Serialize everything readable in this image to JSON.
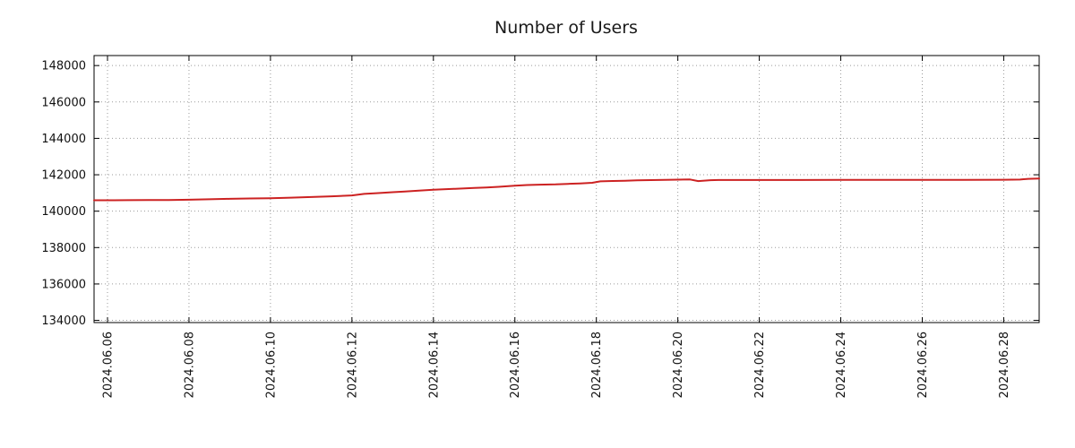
{
  "title": "Number of Users",
  "chart_data": {
    "type": "line",
    "title": "Number of Users",
    "xlabel": "",
    "ylabel": "",
    "grid": true,
    "legend": "none",
    "line_color": "#cc2222",
    "x_unit": "day of month (June 2024)",
    "x": [
      5.67,
      6,
      6.5,
      7,
      7.5,
      8,
      8.5,
      9,
      9.5,
      10,
      10.5,
      11,
      11.5,
      12,
      12.3,
      12.6,
      13,
      13.3,
      13.6,
      14,
      14.5,
      15,
      15.3,
      15.6,
      16,
      16.3,
      16.6,
      17,
      17.3,
      17.6,
      17.9,
      18.1,
      18.4,
      18.7,
      19,
      19.5,
      20,
      20.3,
      20.5,
      20.8,
      21,
      21.5,
      22,
      23,
      24,
      25,
      26,
      27,
      28,
      28.4,
      28.6,
      28.87
    ],
    "values": [
      140600,
      140600,
      140605,
      140610,
      140615,
      140630,
      140655,
      140680,
      140700,
      140715,
      140740,
      140775,
      140815,
      140865,
      140950,
      140990,
      141045,
      141080,
      141120,
      141175,
      141225,
      141275,
      141300,
      141340,
      141395,
      141435,
      141455,
      141470,
      141500,
      141525,
      141560,
      141640,
      141660,
      141675,
      141695,
      141710,
      141730,
      141740,
      141655,
      141700,
      141710,
      141710,
      141710,
      141710,
      141715,
      141715,
      141720,
      141720,
      141725,
      141735,
      141775,
      141795
    ],
    "xlim": [
      5.67,
      28.87
    ],
    "ylim": [
      133880,
      148550
    ],
    "xticks": [
      6,
      8,
      10,
      12,
      14,
      16,
      18,
      20,
      22,
      24,
      26,
      28
    ],
    "xtick_labels": [
      "2024.06.06",
      "2024.06.08",
      "2024.06.10",
      "2024.06.12",
      "2024.06.14",
      "2024.06.16",
      "2024.06.18",
      "2024.06.20",
      "2024.06.22",
      "2024.06.24",
      "2024.06.26",
      "2024.06.28"
    ],
    "yticks": [
      134000,
      136000,
      138000,
      140000,
      142000,
      144000,
      146000,
      148000
    ],
    "ytick_labels": [
      "134000",
      "136000",
      "138000",
      "140000",
      "142000",
      "144000",
      "146000",
      "148000"
    ]
  }
}
